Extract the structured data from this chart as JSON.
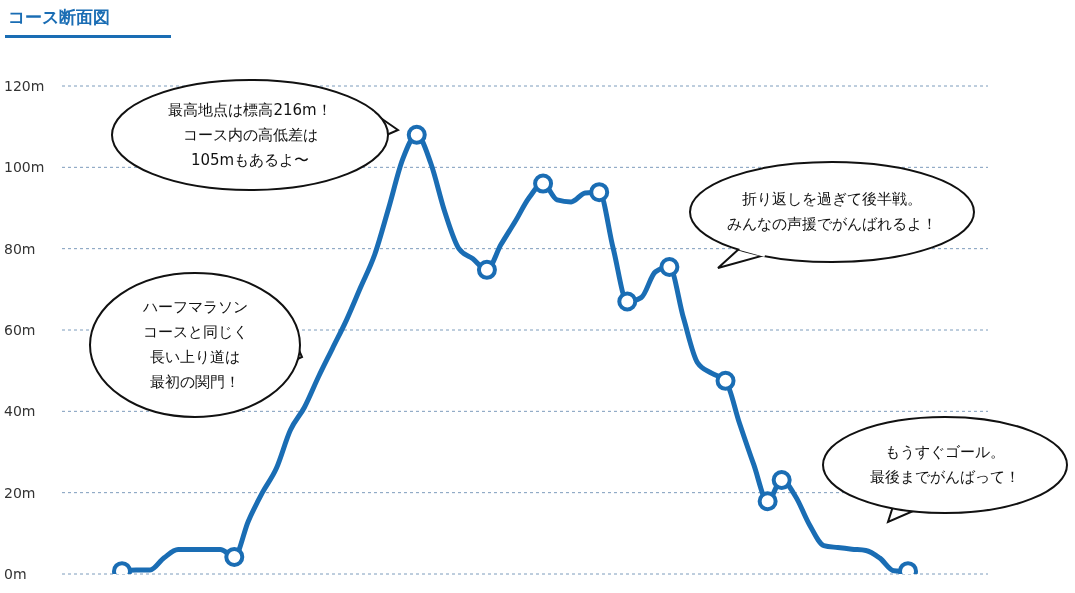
{
  "chart_data": {
    "type": "line",
    "title": "コース断面図",
    "categories": [
      null,
      null,
      null,
      null,
      null,
      null,
      null,
      null,
      null,
      null,
      null,
      null,
      null,
      null,
      null,
      null,
      null,
      null,
      null,
      null,
      null,
      null,
      null,
      null,
      null,
      null,
      null,
      null,
      null,
      null,
      null,
      null,
      null,
      null,
      null,
      null,
      null,
      null,
      null,
      null,
      null,
      null,
      null,
      null,
      null,
      null,
      null,
      null,
      null,
      null,
      null,
      null,
      null,
      null,
      null,
      null,
      null
    ],
    "series": [
      {
        "color": "#1a6db4",
        "marker": "none",
        "values": [
          0.7,
          1,
          1,
          4,
          6,
          6,
          6,
          6,
          4.2,
          13,
          20,
          26,
          35.4,
          41,
          48.5,
          55.5,
          62.5,
          70.5,
          78.5,
          90,
          102,
          108,
          101,
          89,
          80,
          77.5,
          74.8,
          81,
          86.6,
          92.5,
          96,
          92,
          91.5,
          93.7,
          93.9,
          80,
          67,
          68,
          74.3,
          75.5,
          63,
          52,
          49.4,
          47.5,
          37,
          27,
          17.9,
          23.1,
          19,
          12,
          7,
          6.5,
          6.1,
          5.8,
          3.9,
          0.8,
          0.7
        ]
      },
      {
        "type": "scatter",
        "color": "#1a6db4",
        "marker": "circle",
        "values": [
          0.7,
          null,
          null,
          null,
          null,
          null,
          null,
          null,
          4.2,
          null,
          null,
          null,
          null,
          null,
          null,
          null,
          null,
          null,
          null,
          null,
          null,
          108,
          null,
          null,
          null,
          null,
          74.8,
          null,
          null,
          null,
          96,
          null,
          null,
          null,
          93.9,
          null,
          67,
          null,
          null,
          75.5,
          null,
          null,
          null,
          47.5,
          null,
          null,
          17.9,
          23.1,
          null,
          null,
          null,
          null,
          null,
          null,
          null,
          null,
          0.7
        ]
      }
    ],
    "ylim": [
      0,
      120
    ],
    "yticks": [
      {
        "value": 0,
        "label": "0m"
      },
      {
        "value": 20,
        "label": "20m"
      },
      {
        "value": 40,
        "label": "40m"
      },
      {
        "value": 60,
        "label": "60m"
      },
      {
        "value": 80,
        "label": "80m"
      },
      {
        "value": 100,
        "label": "100m"
      },
      {
        "value": 120,
        "label": "120m"
      }
    ],
    "grid": "y",
    "annotations": [
      "最高地点は標高216m！コース内の高低差は105mもあるよ〜",
      "ハーフマラソンコースと同じく長い上り道は最初の関門！",
      "折り返しを過ぎて後半戦。みんなの声援でがんばれるよ！",
      "もうすぐゴール。最後までがんばって！"
    ]
  }
}
